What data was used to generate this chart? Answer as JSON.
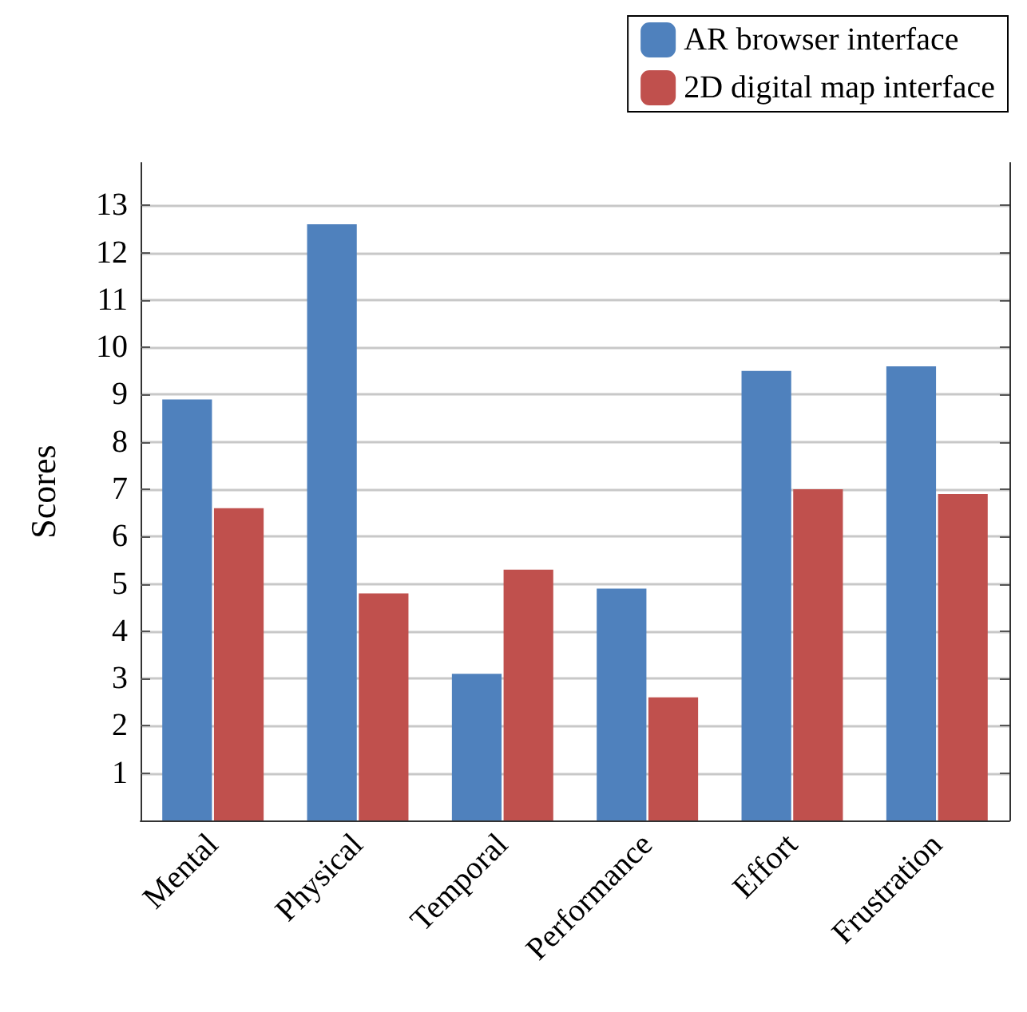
{
  "chart_data": {
    "type": "bar",
    "ylabel": "Scores",
    "categories": [
      "Mental",
      "Physical",
      "Temporal",
      "Performance",
      "Effort",
      "Frustration"
    ],
    "series": [
      {
        "name": "AR browser interface",
        "color": "#4f81bd",
        "values": [
          8.9,
          12.6,
          3.1,
          4.9,
          9.5,
          9.6
        ]
      },
      {
        "name": "2D digital map interface",
        "color": "#c0504d",
        "values": [
          6.6,
          4.8,
          5.3,
          2.6,
          7.0,
          6.9
        ]
      }
    ],
    "ylim": [
      0,
      13.9
    ],
    "yticks": [
      1,
      2,
      3,
      4,
      5,
      6,
      7,
      8,
      9,
      10,
      11,
      12,
      13
    ],
    "grid": "y",
    "legend": "top right"
  }
}
